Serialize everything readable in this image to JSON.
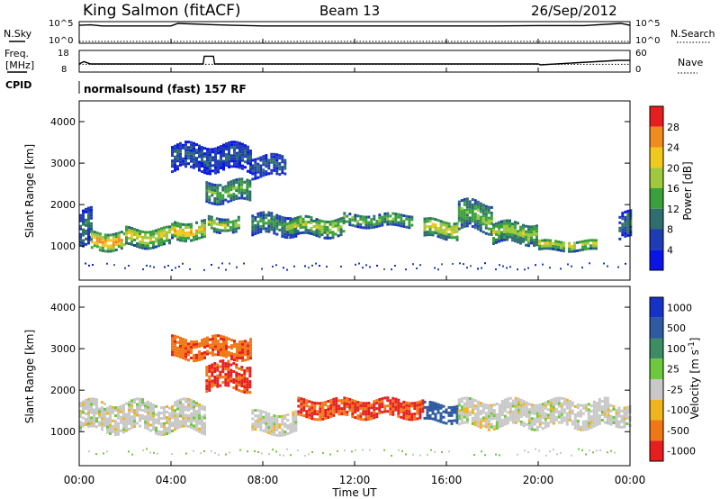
{
  "header": {
    "station": "King Salmon (fitACF)",
    "beam": "Beam 13",
    "date": "26/Sep/2012"
  },
  "status_panels": {
    "nsky_label": "N.Sky",
    "nsky_tick_top": "10^5",
    "nsky_tick_bottom": "10^0",
    "nsearch_label": "N.Search",
    "nsearch_tick_top": "10^5",
    "nsearch_tick_bottom": "10^0",
    "freq_label_line1": "Freq.",
    "freq_label_line2": "[MHz]",
    "freq_tick_top": "18",
    "freq_tick_bottom": "8",
    "nave_label": "Nave",
    "nave_tick_top": "60",
    "nave_tick_bottom": "0",
    "cpid_label": "CPID",
    "cpid_text": "normalsound (fast) 157 RF"
  },
  "axes": {
    "ylabel": "Slant Range [km]",
    "xlabel": "Time UT",
    "y_ticks": [
      "1000",
      "2000",
      "3000",
      "4000"
    ],
    "x_ticks": [
      "00:00",
      "04:00",
      "08:00",
      "12:00",
      "16:00",
      "20:00",
      "00:00"
    ]
  },
  "colorbars": {
    "power": {
      "label": "Power [dB]",
      "ticks": [
        "4",
        "8",
        "12",
        "16",
        "20",
        "24",
        "28"
      ],
      "colors": [
        "#0a14e6",
        "#1e3cb4",
        "#2e6e6e",
        "#3aa03c",
        "#a0c83c",
        "#f0c81e",
        "#f08c1e",
        "#e61e1e"
      ]
    },
    "velocity": {
      "label": "Velocity [m s^-1]",
      "ticks": [
        "1000",
        "500",
        "100",
        "25",
        "-25",
        "-100",
        "-500",
        "-1000"
      ],
      "colors": [
        "#1432c8",
        "#2d5aa0",
        "#3c8c64",
        "#6ec83c",
        "#c8c8c8",
        "#f0b41e",
        "#f07814",
        "#e61e1e"
      ]
    }
  },
  "chart_data": [
    {
      "type": "line",
      "name": "N.Sky / N.Search",
      "x_unit": "hours UT",
      "x": [
        0,
        0.5,
        1,
        2,
        4,
        4.3,
        6,
        8,
        10,
        12,
        14,
        16,
        18,
        20,
        22,
        23.6,
        24
      ],
      "series": [
        {
          "name": "N.Sky",
          "values": [
            30000,
            40000,
            20000,
            20000,
            20000,
            100000,
            40000,
            20000,
            20000,
            20000,
            20000,
            20000,
            20000,
            25000,
            25000,
            100000,
            30000
          ]
        },
        {
          "name": "N.Search",
          "values": [
            1,
            1,
            1,
            1,
            1,
            1,
            1,
            1,
            1,
            1,
            1,
            1,
            1,
            1,
            1,
            1,
            1
          ]
        }
      ],
      "ylim": [
        "10^0",
        "10^5"
      ]
    },
    {
      "type": "line",
      "name": "Freq. / Nave",
      "x_unit": "hours UT",
      "freq_mhz": {
        "x": [
          0,
          0.2,
          0.5,
          5.4,
          5.45,
          5.85,
          5.9,
          6.5,
          7.1,
          20.0,
          20.1,
          23.5,
          24
        ],
        "values": [
          11.5,
          12.8,
          11.5,
          11.5,
          15.8,
          15.8,
          11.5,
          11.5,
          11.5,
          11.5,
          11.0,
          13.5,
          13.5
        ]
      },
      "nave": {
        "x": [
          0,
          24
        ],
        "values": [
          20,
          20
        ]
      },
      "freq_ylim": [
        8,
        18
      ],
      "nave_ylim": [
        0,
        60
      ]
    },
    {
      "type": "heatmap",
      "quantity": "Power [dB]",
      "x_range_hours": [
        0,
        24
      ],
      "y_range_km": [
        180,
        4500
      ],
      "scale_db": [
        0,
        30
      ],
      "echo_bands": [
        {
          "t_start": 0.0,
          "t_end": 0.5,
          "center_km": 1350,
          "width_km": 850,
          "power_db": 8
        },
        {
          "t_start": 0.5,
          "t_end": 2.0,
          "center_km": 1100,
          "width_km": 400,
          "power_db": 20
        },
        {
          "t_start": 2.0,
          "t_end": 4.0,
          "center_km": 1200,
          "width_km": 450,
          "power_db": 16
        },
        {
          "t_start": 4.0,
          "t_end": 5.5,
          "center_km": 1350,
          "width_km": 400,
          "power_db": 18
        },
        {
          "t_start": 5.6,
          "t_end": 7.0,
          "center_km": 1500,
          "width_km": 350,
          "power_db": 14
        },
        {
          "t_start": 5.5,
          "t_end": 7.5,
          "center_km": 2300,
          "width_km": 500,
          "power_db": 12
        },
        {
          "t_start": 4.0,
          "t_end": 7.5,
          "center_km": 3100,
          "width_km": 600,
          "power_db": 6
        },
        {
          "t_start": 7.5,
          "t_end": 9.0,
          "center_km": 2900,
          "width_km": 500,
          "power_db": 6
        },
        {
          "t_start": 7.5,
          "t_end": 9.5,
          "center_km": 1500,
          "width_km": 500,
          "power_db": 10
        },
        {
          "t_start": 9.0,
          "t_end": 11.5,
          "center_km": 1450,
          "width_km": 450,
          "power_db": 14
        },
        {
          "t_start": 11.5,
          "t_end": 14.5,
          "center_km": 1600,
          "width_km": 300,
          "power_db": 12
        },
        {
          "t_start": 15.0,
          "t_end": 16.5,
          "center_km": 1400,
          "width_km": 450,
          "power_db": 16
        },
        {
          "t_start": 16.5,
          "t_end": 18.0,
          "center_km": 1700,
          "width_km": 700,
          "power_db": 12
        },
        {
          "t_start": 18.0,
          "t_end": 20.0,
          "center_km": 1300,
          "width_km": 500,
          "power_db": 14
        },
        {
          "t_start": 20.0,
          "t_end": 22.5,
          "center_km": 1000,
          "width_km": 250,
          "power_db": 16
        },
        {
          "t_start": 23.5,
          "t_end": 24.0,
          "center_km": 1450,
          "width_km": 600,
          "power_db": 8
        }
      ]
    },
    {
      "type": "heatmap",
      "quantity": "Velocity [m s^-1]",
      "x_range_hours": [
        0,
        24
      ],
      "y_range_km": [
        180,
        4500
      ],
      "scale_ms": [
        -1000,
        1000
      ],
      "echo_bands": [
        {
          "t_start": 0.0,
          "t_end": 5.5,
          "center_km": 1350,
          "width_km": 700,
          "velocity_ms": 0
        },
        {
          "t_start": 5.5,
          "t_end": 7.5,
          "center_km": 2300,
          "width_km": 600,
          "velocity_ms": -300
        },
        {
          "t_start": 4.0,
          "t_end": 7.5,
          "center_km": 3000,
          "width_km": 500,
          "velocity_ms": -200
        },
        {
          "t_start": 7.5,
          "t_end": 9.5,
          "center_km": 1200,
          "width_km": 500,
          "velocity_ms": 0
        },
        {
          "t_start": 9.5,
          "t_end": 15.0,
          "center_km": 1550,
          "width_km": 450,
          "velocity_ms": -300
        },
        {
          "t_start": 15.0,
          "t_end": 16.5,
          "center_km": 1450,
          "width_km": 450,
          "velocity_ms": 400
        },
        {
          "t_start": 16.5,
          "t_end": 23.0,
          "center_km": 1400,
          "width_km": 600,
          "velocity_ms": 0
        },
        {
          "t_start": 23.0,
          "t_end": 24.0,
          "center_km": 1400,
          "width_km": 500,
          "velocity_ms": 0
        }
      ]
    }
  ]
}
